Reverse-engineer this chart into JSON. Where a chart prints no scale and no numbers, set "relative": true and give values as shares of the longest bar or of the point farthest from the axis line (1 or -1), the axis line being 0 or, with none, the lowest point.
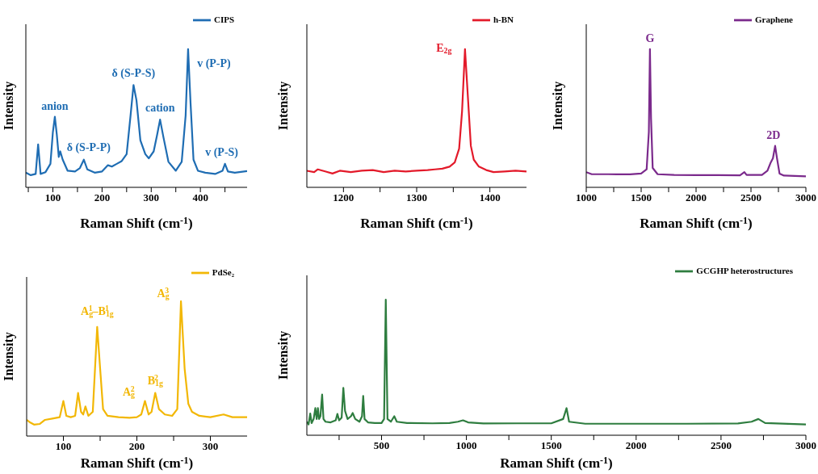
{
  "chart_data": [
    {
      "type": "line",
      "relative": true,
      "xlabel": "Raman Shift (cm$^{-1}$)",
      "ylabel": "Intensity",
      "xlim": [
        45,
        495
      ],
      "xticks": [
        {
          "value": 50,
          "label": null
        },
        100,
        {
          "value": 150,
          "label": null
        },
        200,
        {
          "value": 250,
          "label": null
        },
        300,
        {
          "value": 350,
          "label": null
        },
        400,
        {
          "value": 450,
          "label": null
        }
      ],
      "legend": "top right",
      "series": [
        {
          "name": "CIPS",
          "color": "#1f6db3",
          "x": [
            45,
            55,
            65,
            70,
            75,
            85,
            95,
            100,
            104,
            108,
            112,
            115,
            120,
            130,
            145,
            155,
            163,
            170,
            185,
            200,
            212,
            220,
            230,
            240,
            250,
            258,
            264,
            270,
            278,
            288,
            295,
            305,
            312,
            318,
            325,
            335,
            350,
            362,
            370,
            375,
            380,
            386,
            395,
            410,
            430,
            445,
            450,
            456,
            470,
            495
          ],
          "values": [
            0.106,
            0.088,
            0.097,
            0.31,
            0.097,
            0.11,
            0.17,
            0.4,
            0.51,
            0.38,
            0.22,
            0.26,
            0.2,
            0.12,
            0.115,
            0.14,
            0.2,
            0.13,
            0.106,
            0.115,
            0.16,
            0.15,
            0.17,
            0.19,
            0.24,
            0.52,
            0.74,
            0.63,
            0.34,
            0.24,
            0.21,
            0.26,
            0.38,
            0.49,
            0.36,
            0.185,
            0.12,
            0.185,
            0.52,
            1.0,
            0.61,
            0.2,
            0.12,
            0.106,
            0.097,
            0.12,
            0.17,
            0.115,
            0.106,
            0.118
          ]
        }
      ],
      "annotations": [
        {
          "text": "anion",
          "x": 104,
          "y": 0.51
        },
        {
          "text": "δ (S-P-P)",
          "x": 163,
          "y": 0.2
        },
        {
          "text": "δ (S-P-S)",
          "x": 264,
          "y": 0.74
        },
        {
          "text": "cation",
          "x": 318,
          "y": 0.49
        },
        {
          "text": "v (P-P)",
          "x": 375,
          "y": 1.0
        },
        {
          "text": "v (P-S)",
          "x": 450,
          "y": 0.17
        }
      ]
    },
    {
      "type": "line",
      "relative": true,
      "xlabel": "Raman Shift (cm$^{-1}$)",
      "ylabel": "Intensity",
      "xlim": [
        1150,
        1450
      ],
      "xticks": [
        1200,
        {
          "value": 1250,
          "label": null
        },
        1300,
        {
          "value": 1350,
          "label": null
        },
        1400
      ],
      "legend": "top right",
      "series": [
        {
          "name": "h-BN",
          "color": "#e31a2a",
          "x": [
            1150,
            1160,
            1165,
            1175,
            1185,
            1195,
            1210,
            1225,
            1240,
            1255,
            1270,
            1285,
            1300,
            1315,
            1325,
            1335,
            1345,
            1352,
            1358,
            1362,
            1366,
            1370,
            1374,
            1378,
            1385,
            1395,
            1405,
            1420,
            1435,
            1450
          ],
          "values": [
            0.12,
            0.11,
            0.13,
            0.115,
            0.1,
            0.12,
            0.11,
            0.12,
            0.125,
            0.11,
            0.12,
            0.115,
            0.12,
            0.125,
            0.13,
            0.135,
            0.15,
            0.18,
            0.28,
            0.55,
            1.0,
            0.65,
            0.3,
            0.2,
            0.15,
            0.125,
            0.11,
            0.115,
            0.12,
            0.115
          ]
        }
      ],
      "annotations": [
        {
          "text": "E$_{2g}$",
          "x": 1366,
          "y": 1.0
        }
      ]
    },
    {
      "type": "line",
      "relative": true,
      "xlabel": "Raman Shift (cm$^{-1}$)",
      "ylabel": "Intensity",
      "xlim": [
        1000,
        3000
      ],
      "xticks": [
        1000,
        {
          "value": 1250,
          "label": null
        },
        1500,
        {
          "value": 1750,
          "label": null
        },
        2000,
        {
          "value": 2250,
          "label": null
        },
        2500,
        {
          "value": 2750,
          "label": null
        },
        3000
      ],
      "legend": "top right",
      "series": [
        {
          "name": "Graphene",
          "color": "#7b2a8c",
          "x": [
            1000,
            1050,
            1200,
            1400,
            1500,
            1550,
            1570,
            1580,
            1590,
            1605,
            1650,
            1800,
            2000,
            2200,
            2400,
            2440,
            2460,
            2600,
            2650,
            2680,
            2700,
            2720,
            2735,
            2760,
            2800,
            3000
          ],
          "values": [
            0.11,
            0.095,
            0.095,
            0.094,
            0.1,
            0.13,
            0.4,
            1.0,
            0.5,
            0.14,
            0.095,
            0.09,
            0.088,
            0.088,
            0.087,
            0.11,
            0.09,
            0.09,
            0.12,
            0.18,
            0.21,
            0.3,
            0.22,
            0.1,
            0.085,
            0.08
          ]
        }
      ],
      "annotations": [
        {
          "text": "G",
          "x": 1580,
          "y": 1.0
        },
        {
          "text": "2D",
          "x": 2720,
          "y": 0.3
        }
      ]
    },
    {
      "type": "line",
      "relative": true,
      "xlabel": "Raman Shift (cm$^{-1}$)",
      "ylabel": "Intensity",
      "xlim": [
        50,
        350
      ],
      "xticks": [
        100,
        {
          "value": 150,
          "label": null
        },
        200,
        {
          "value": 250,
          "label": null
        },
        300
      ],
      "legend": "top right",
      "series": [
        {
          "name": "PdSe₂",
          "color": "#f2b705",
          "x": [
            50,
            55,
            60,
            68,
            75,
            85,
            95,
            100,
            104,
            110,
            116,
            120,
            124,
            127,
            130,
            134,
            140,
            146,
            150,
            154,
            160,
            175,
            190,
            200,
            206,
            211,
            216,
            220,
            225,
            230,
            238,
            248,
            255,
            260,
            265,
            270,
            275,
            285,
            300,
            318,
            330,
            350
          ],
          "values": [
            0.12,
            0.1,
            0.085,
            0.09,
            0.12,
            0.13,
            0.14,
            0.26,
            0.15,
            0.14,
            0.15,
            0.32,
            0.18,
            0.16,
            0.22,
            0.15,
            0.18,
            0.81,
            0.5,
            0.2,
            0.15,
            0.14,
            0.135,
            0.14,
            0.16,
            0.26,
            0.16,
            0.18,
            0.32,
            0.2,
            0.16,
            0.15,
            0.2,
            1.0,
            0.5,
            0.24,
            0.18,
            0.15,
            0.14,
            0.16,
            0.14,
            0.14
          ]
        }
      ],
      "annotations": [
        {
          "text": "A$_{g}$$^{1}$–B$_{1g}$$^{1}$",
          "x": 146,
          "y": 0.81
        },
        {
          "text": "A$_{g}$$^{2}$",
          "x": 211,
          "y": 0.26
        },
        {
          "text": "B$_{1g}$$^{2}$",
          "x": 225,
          "y": 0.32
        },
        {
          "text": "A$_{g}$$^{3}$",
          "x": 260,
          "y": 1.0
        }
      ]
    },
    {
      "type": "line",
      "relative": true,
      "xlabel": "Raman Shift (cm$^{-1}$)",
      "ylabel": "Intensity",
      "xlim": [
        60,
        3000
      ],
      "xticks": [
        {
          "value": 250,
          "label": null
        },
        500,
        {
          "value": 750,
          "label": null
        },
        1000,
        {
          "value": 1250,
          "label": null
        },
        1500,
        {
          "value": 1750,
          "label": null
        },
        2000,
        {
          "value": 2250,
          "label": null
        },
        2500,
        {
          "value": 2750,
          "label": null
        },
        3000
      ],
      "legend": "top right",
      "series": [
        {
          "name": "GCGHP heterostructures",
          "color": "#2e7d3f",
          "x": [
            60,
            70,
            80,
            88,
            100,
            110,
            118,
            125,
            132,
            140,
            150,
            158,
            170,
            200,
            230,
            240,
            250,
            265,
            275,
            285,
            300,
            320,
            330,
            345,
            370,
            385,
            392,
            400,
            420,
            460,
            500,
            515,
            525,
            535,
            555,
            575,
            590,
            650,
            800,
            900,
            950,
            980,
            1010,
            1100,
            1300,
            1500,
            1570,
            1590,
            1605,
            1700,
            2000,
            2300,
            2600,
            2680,
            2720,
            2760,
            3000
          ],
          "values": [
            0.1,
            0.08,
            0.16,
            0.09,
            0.12,
            0.2,
            0.12,
            0.2,
            0.12,
            0.14,
            0.3,
            0.12,
            0.1,
            0.095,
            0.11,
            0.157,
            0.11,
            0.13,
            0.35,
            0.18,
            0.12,
            0.14,
            0.164,
            0.12,
            0.1,
            0.14,
            0.29,
            0.12,
            0.095,
            0.09,
            0.09,
            0.12,
            1.0,
            0.12,
            0.1,
            0.14,
            0.1,
            0.09,
            0.088,
            0.09,
            0.1,
            0.11,
            0.095,
            0.087,
            0.088,
            0.088,
            0.12,
            0.2,
            0.1,
            0.085,
            0.085,
            0.085,
            0.087,
            0.1,
            0.12,
            0.09,
            0.08
          ]
        }
      ]
    }
  ]
}
